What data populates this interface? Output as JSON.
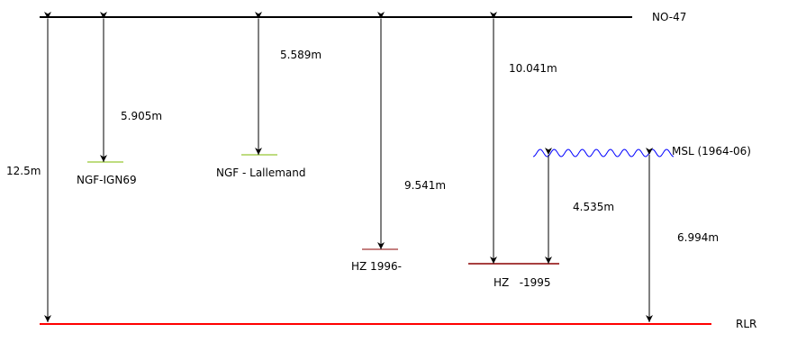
{
  "colors": {
    "reference_top": "#000000",
    "rlr": "#ff0000",
    "ngf": "#7cb800",
    "hz": "#8b0000",
    "msl": "#0000ff",
    "arrow": "#000000"
  },
  "labels": {
    "no47": "NO-47",
    "rlr": "RLR",
    "msl": "MSL (1964-06)",
    "ngf_ign69": "NGF-IGN69",
    "ngf_lallemand": "NGF - Lallemand",
    "hz_1996": "HZ 1996-",
    "hz_1995": "HZ   -1995"
  },
  "measurements": {
    "no47_to_rlr": "12.5m",
    "no47_to_ngf_ign69": "5.905m",
    "no47_to_ngf_lallemand": "5.589m",
    "no47_to_hz_1996": "9.541m",
    "no47_to_hz_1995": "10.041m",
    "hz_1995_to_msl": "4.535m",
    "rlr_to_msl": "6.994m"
  }
}
